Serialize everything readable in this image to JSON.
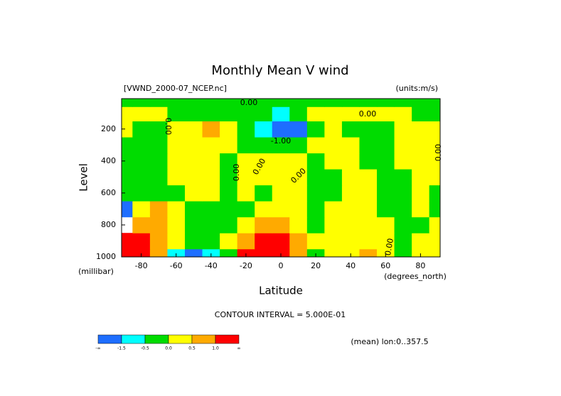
{
  "chart_data": {
    "type": "contour",
    "title": "Monthly Mean V wind",
    "subtitle": "[VWND_2000-07_NCEP.nc]",
    "units": "(units:m/s)",
    "x_label": "Latitude",
    "x_units": "(degrees_north)",
    "y_label": "Level",
    "y_units": "(millibar)",
    "footer": "CONTOUR INTERVAL = 5.000E-01",
    "note": "(mean) lon:0..357.5",
    "x": [
      -90,
      -80,
      -70,
      -60,
      -50,
      -40,
      -30,
      -20,
      -10,
      0,
      10,
      20,
      30,
      40,
      50,
      60,
      70,
      80,
      90
    ],
    "y": [
      1000,
      900,
      800,
      700,
      600,
      500,
      400,
      300,
      200,
      100,
      20
    ],
    "z": [
      [
        1.5,
        1.5,
        0.7,
        -1,
        -1.6,
        -1,
        -0.2,
        1.5,
        1.8,
        1.5,
        0.7,
        -0.2,
        0.2,
        0.3,
        0.6,
        0.2,
        -0.2,
        0.2,
        0.2
      ],
      [
        1.2,
        1.2,
        0.8,
        0.3,
        -0.3,
        -0.3,
        0.2,
        0.8,
        1.2,
        1.1,
        0.7,
        0.3,
        0.2,
        0.2,
        0.2,
        0.2,
        -0.2,
        0.1,
        0.1
      ],
      [
        null,
        0.8,
        0.7,
        0.3,
        -0.2,
        -0.2,
        -0.1,
        0.3,
        0.6,
        0.6,
        0.3,
        -0.1,
        0.2,
        0.2,
        0.2,
        0.2,
        -0.2,
        -0.2,
        0.2
      ],
      [
        -1.6,
        0.3,
        0.6,
        0.3,
        -0.2,
        -0.3,
        -0.2,
        -0.2,
        0.2,
        0.3,
        0.2,
        -0.1,
        0.2,
        0.2,
        0.2,
        -0.1,
        -0.2,
        0.2,
        -0.1
      ],
      [
        -0.2,
        -0.2,
        -0.2,
        -0.2,
        0.1,
        0.2,
        -0.1,
        0.1,
        -0.1,
        0.1,
        0.2,
        -0.1,
        -0.2,
        0.2,
        0.1,
        -0.2,
        -0.2,
        0.1,
        -0.2
      ],
      [
        -0.2,
        -0.2,
        -0.3,
        0.2,
        0.2,
        0.2,
        -0.1,
        0.2,
        0.2,
        0.2,
        0.1,
        -0.2,
        -0.2,
        0.2,
        0.2,
        -0.2,
        -0.2,
        0.2,
        0.2
      ],
      [
        -0.2,
        -0.2,
        -0.2,
        0.2,
        0.2,
        0.2,
        -0.2,
        0.1,
        0.2,
        0.2,
        0.2,
        -0.2,
        0.1,
        0.2,
        -0.2,
        -0.2,
        0.1,
        0.2,
        0.2
      ],
      [
        -0.2,
        -0.2,
        -0.2,
        0.2,
        0.2,
        0.2,
        0.1,
        -0.2,
        -0.3,
        -0.3,
        -0.2,
        0.2,
        0.2,
        0.2,
        -0.2,
        -0.2,
        0.2,
        0.2,
        0.2
      ],
      [
        0.1,
        -0.2,
        -0.2,
        0.2,
        0.2,
        0.6,
        0.2,
        -0.3,
        -1,
        -1.8,
        -1.6,
        -0.3,
        0.2,
        -0.2,
        -0.2,
        -0.2,
        0.2,
        0.2,
        0.2
      ],
      [
        0.1,
        0.2,
        0.2,
        -0.1,
        -0.1,
        -0.2,
        -0.2,
        -0.2,
        -0.4,
        -0.7,
        -0.3,
        0.1,
        0.2,
        0.2,
        0.1,
        0.2,
        0.1,
        -0.1,
        -0.1
      ],
      [
        -0.1,
        -0.1,
        -0.1,
        -0.1,
        -0.1,
        -0.1,
        -0.1,
        -0.1,
        -0.1,
        -0.1,
        -0.1,
        -0.1,
        -0.1,
        -0.1,
        -0.1,
        -0.1,
        -0.1,
        -0.1,
        -0.1
      ]
    ],
    "xlim": [
      -91.25,
      91.25
    ],
    "ylim": [
      1000,
      10
    ],
    "xticks": [
      -80,
      -60,
      -40,
      -20,
      0,
      20,
      40,
      60,
      80
    ],
    "yticks": [
      200,
      400,
      600,
      800,
      1000
    ],
    "contour_labels": [
      "0.00",
      "0.00",
      "-1.00",
      "0.00",
      "0.00",
      "0.00",
      "0.00",
      "0.00",
      "0.00"
    ],
    "colorbar": {
      "colors": [
        "#1e6eff",
        "#00ffff",
        "#00dc00",
        "#ffff00",
        "#ffaa00",
        "#ff0000"
      ],
      "ticks": [
        {
          "label": "-∞"
        },
        {
          "value": -1.5,
          "label": "-1.5"
        },
        {
          "value": -0.5,
          "label": "-0.5"
        },
        {
          "value": 0,
          "label": "0.0"
        },
        {
          "value": 0.5,
          "label": "0.5"
        },
        {
          "value": 1,
          "label": "1.0"
        },
        {
          "label": "∞"
        }
      ]
    }
  }
}
